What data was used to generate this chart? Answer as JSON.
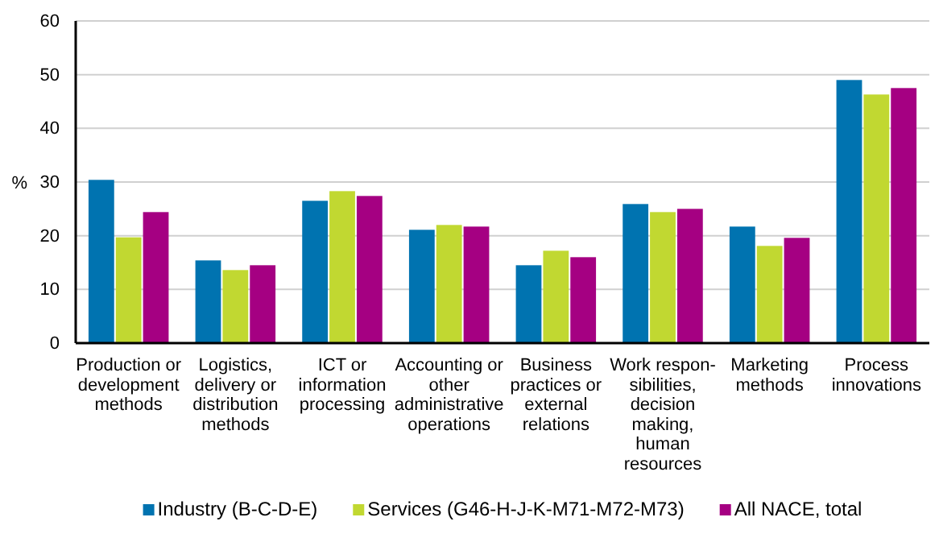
{
  "chart_data": {
    "type": "bar",
    "ylabel": "%",
    "categories": [
      "Production or development methods",
      "Logistics, delivery or distribution methods",
      "ICT or information processing",
      "Accounting or other administrative operations",
      "Business practices or external relations",
      "Work respon-sibilities, decision making, human resources",
      "Marketing methods",
      "Process innovations"
    ],
    "series": [
      {
        "name": "Industry (B-C-D-E)",
        "color": "#0073b0",
        "values": [
          30.4,
          15.4,
          26.5,
          21.1,
          14.5,
          25.9,
          21.7,
          49.0
        ]
      },
      {
        "name": "Services (G46-H-J-K-M71-M72-M73)",
        "color": "#c1d831",
        "values": [
          19.7,
          13.6,
          28.3,
          22.0,
          17.2,
          24.4,
          18.1,
          46.3
        ]
      },
      {
        "name": "All NACE, total",
        "color": "#a50082",
        "values": [
          24.4,
          14.5,
          27.4,
          21.7,
          16.0,
          25.0,
          19.6,
          47.5
        ]
      }
    ],
    "ylim": [
      0,
      60
    ],
    "yticks": [
      0,
      10,
      20,
      30,
      40,
      50,
      60
    ],
    "grid": "y",
    "legend": "bottom"
  }
}
